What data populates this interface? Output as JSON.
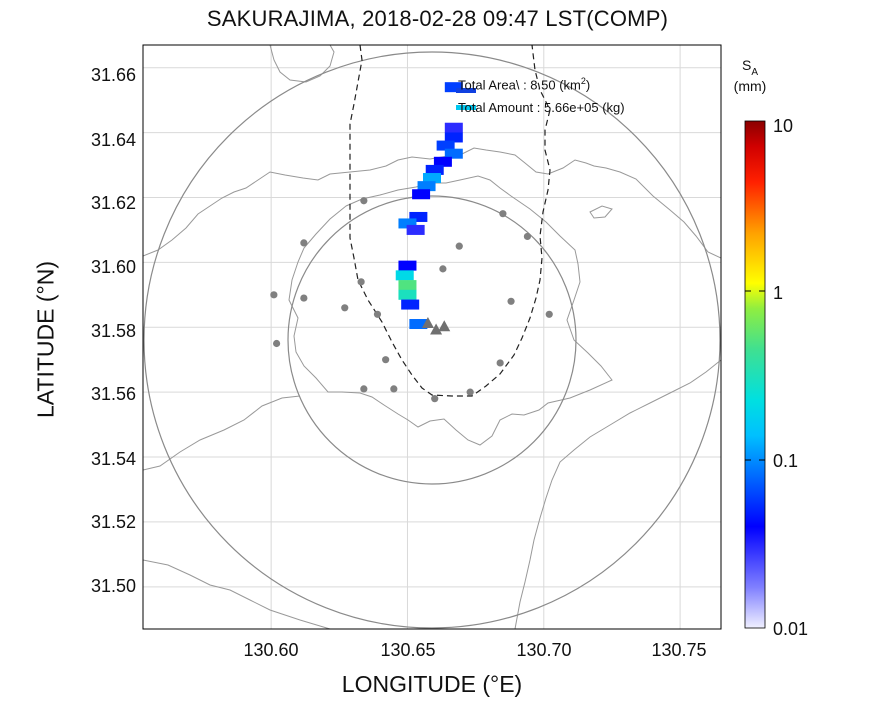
{
  "title": "SAKURAJIMA, 2018-02-28 09:47 LST(COMP)",
  "axes": {
    "xlabel": "LONGITUDE (°E)",
    "ylabel": "LATITUDE (°N)",
    "xticks": [
      "130.60",
      "130.65",
      "130.70",
      "130.75"
    ],
    "yticks": [
      "31.66",
      "31.64",
      "31.62",
      "31.60",
      "31.58",
      "31.56",
      "31.54",
      "31.52",
      "31.50"
    ],
    "xlim": [
      130.553,
      130.765
    ],
    "ylim": [
      31.487,
      31.667
    ]
  },
  "legend": {
    "area_label": "Total Area",
    "area_value": ": 8.50 (km",
    "area_unit_sup": "2",
    "area_close": ")",
    "amount_label": "Total Amount",
    "amount_value": ": 5.66e+05 (kg)"
  },
  "colorbar": {
    "symbol": "S",
    "subscript": "A",
    "unit": "(mm)",
    "ticks": [
      "10",
      "1",
      "0.1",
      "0.01"
    ],
    "scale": "log",
    "range": [
      0.01,
      10
    ]
  },
  "colors": {
    "grid": "#d9d9d9",
    "coast": "#999999",
    "circle": "#8a8a8a",
    "stations": "#808080",
    "boundary": "#222222"
  },
  "chart_data": {
    "type": "heatmap",
    "title": "SAKURAJIMA, 2018-02-28 09:47 LST(COMP)",
    "xlabel": "LONGITUDE (°E)",
    "ylabel": "LATITUDE (°N)",
    "xlim": [
      130.553,
      130.765
    ],
    "ylim": [
      31.487,
      31.667
    ],
    "grid": true,
    "cells": [
      {
        "lon": 130.667,
        "lat": 31.6415,
        "sa": 0.03
      },
      {
        "lon": 130.667,
        "lat": 31.6385,
        "sa": 0.05
      },
      {
        "lon": 130.664,
        "lat": 31.636,
        "sa": 0.06
      },
      {
        "lon": 130.667,
        "lat": 31.6335,
        "sa": 0.08
      },
      {
        "lon": 130.663,
        "lat": 31.631,
        "sa": 0.04
      },
      {
        "lon": 130.66,
        "lat": 31.6285,
        "sa": 0.05
      },
      {
        "lon": 130.659,
        "lat": 31.626,
        "sa": 0.12
      },
      {
        "lon": 130.657,
        "lat": 31.6235,
        "sa": 0.09
      },
      {
        "lon": 130.655,
        "lat": 31.621,
        "sa": 0.04
      },
      {
        "lon": 130.654,
        "lat": 31.614,
        "sa": 0.05
      },
      {
        "lon": 130.65,
        "lat": 31.612,
        "sa": 0.09
      },
      {
        "lon": 130.653,
        "lat": 31.61,
        "sa": 0.03
      },
      {
        "lon": 130.65,
        "lat": 31.599,
        "sa": 0.04
      },
      {
        "lon": 130.649,
        "lat": 31.596,
        "sa": 0.2
      },
      {
        "lon": 130.65,
        "lat": 31.593,
        "sa": 0.5
      },
      {
        "lon": 130.65,
        "lat": 31.59,
        "sa": 0.3
      },
      {
        "lon": 130.651,
        "lat": 31.587,
        "sa": 0.05
      },
      {
        "lon": 130.654,
        "lat": 31.581,
        "sa": 0.08
      },
      {
        "lon": 130.667,
        "lat": 31.654,
        "sa": 0.06
      }
    ],
    "stations": [
      [
        130.634,
        31.619
      ],
      [
        130.612,
        31.606
      ],
      [
        130.601,
        31.59
      ],
      [
        130.612,
        31.589
      ],
      [
        130.627,
        31.586
      ],
      [
        130.639,
        31.584
      ],
      [
        130.602,
        31.575
      ],
      [
        130.633,
        31.594
      ],
      [
        130.663,
        31.598
      ],
      [
        130.688,
        31.588
      ],
      [
        130.702,
        31.584
      ],
      [
        130.685,
        31.615
      ],
      [
        130.694,
        31.608
      ],
      [
        130.669,
        31.605
      ],
      [
        130.684,
        31.569
      ],
      [
        130.673,
        31.56
      ],
      [
        130.642,
        31.57
      ],
      [
        130.634,
        31.561
      ],
      [
        130.645,
        31.561
      ],
      [
        130.66,
        31.558
      ]
    ],
    "vents": [
      [
        130.6575,
        31.581
      ],
      [
        130.6605,
        31.579
      ],
      [
        130.6635,
        31.58
      ]
    ],
    "circles": [
      {
        "lon": 130.6585,
        "lat": 31.577,
        "radius_km": 10
      },
      {
        "lon": 130.6585,
        "lat": 31.577,
        "radius_km": 5
      }
    ]
  }
}
